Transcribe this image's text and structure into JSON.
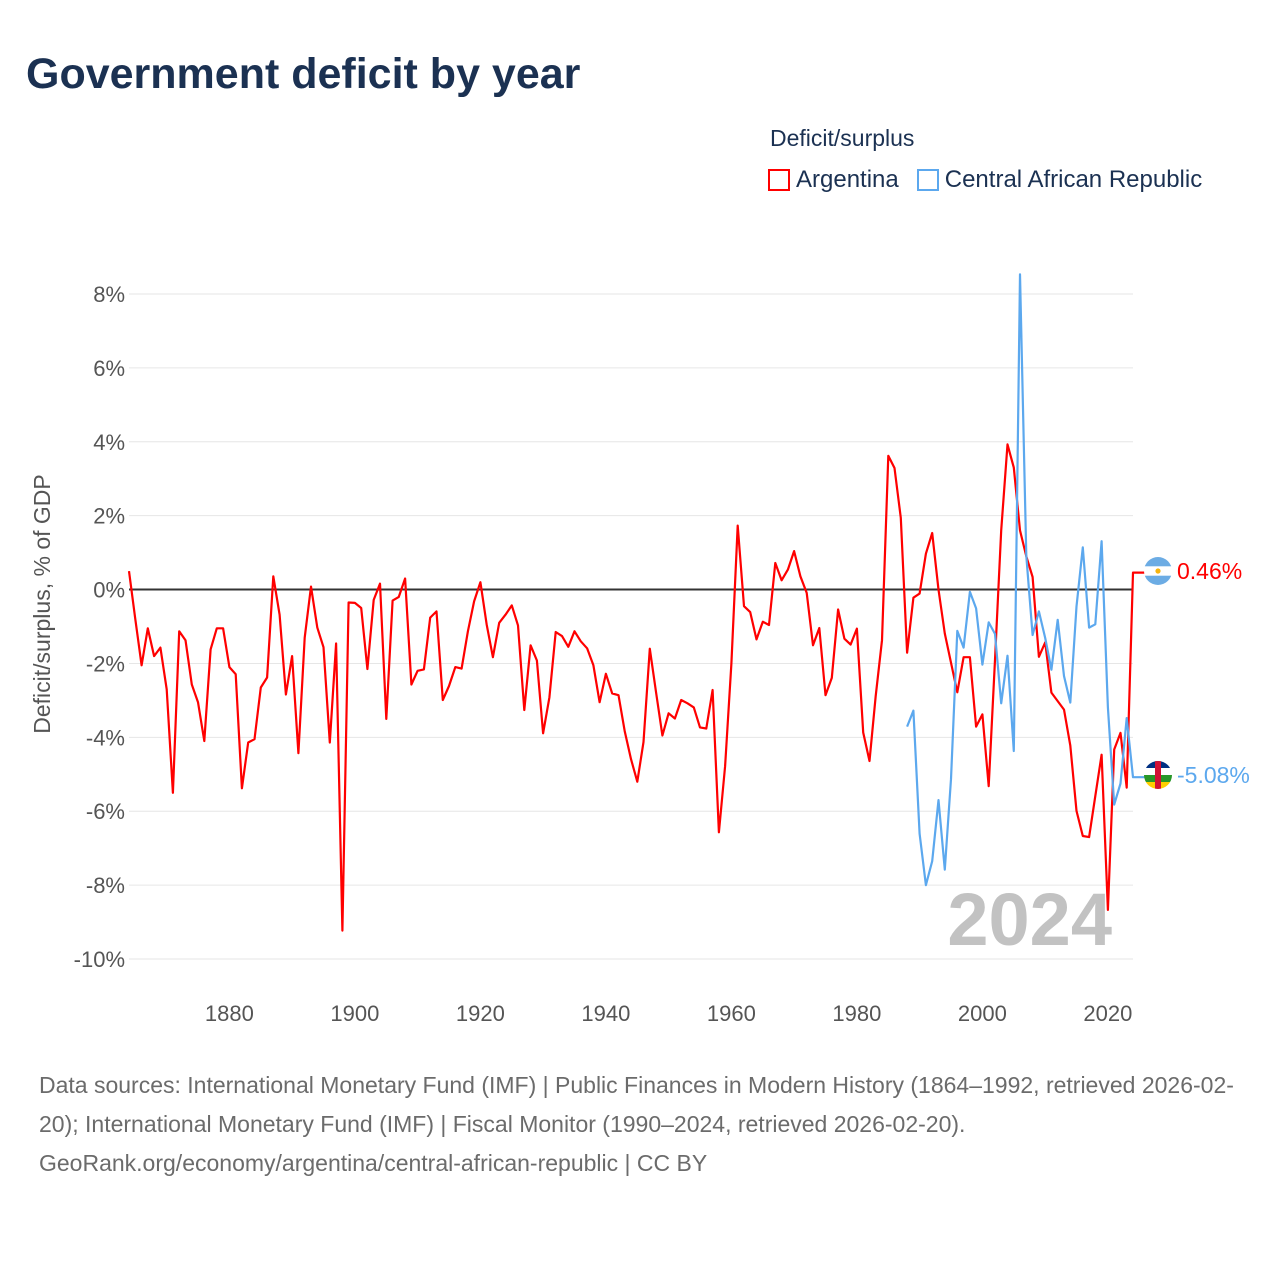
{
  "title": "Government deficit by year",
  "legend": {
    "title": "Deficit/surplus",
    "items": [
      {
        "label": "Argentina",
        "color": "#ff0000"
      },
      {
        "label": "Central African Republic",
        "color": "#5ca8ee"
      }
    ]
  },
  "footer": {
    "sources": "Data sources: International Monetary Fund (IMF) | Public Finances in Modern History (1864–1992, retrieved 2026-02-20); International Monetary Fund (IMF) | Fiscal Monitor (1990–2024, retrieved 2026-02-20).",
    "credit": "GeoRank.org/economy/argentina/central-african-republic | CC BY"
  },
  "chart_data": {
    "type": "line",
    "title": "Government deficit by year",
    "xlabel": "",
    "ylabel": "Deficit/surplus, % of GDP",
    "xlim": [
      1864,
      2024
    ],
    "ylim": [
      -10,
      8
    ],
    "x_ticks": [
      "1880",
      "1900",
      "1920",
      "1940",
      "1960",
      "1980",
      "2000",
      "2020"
    ],
    "y_ticks": [
      "8%",
      "6%",
      "4%",
      "2%",
      "0%",
      "-2%",
      "-4%",
      "-6%",
      "-8%",
      "-10%"
    ],
    "grid": true,
    "legend_position": "top-right",
    "year_watermark": "2024",
    "series": [
      {
        "name": "Argentina",
        "color": "#ff0000",
        "start_year": 1864,
        "end_label": "0.46%",
        "values": [
          0.5,
          -0.8,
          -2.05,
          -1.05,
          -1.8,
          -1.57,
          -2.7,
          -5.5,
          -1.13,
          -1.37,
          -2.57,
          -3.05,
          -4.1,
          -1.62,
          -1.05,
          -1.05,
          -2.1,
          -2.29,
          -5.38,
          -4.14,
          -4.05,
          -2.65,
          -2.38,
          0.36,
          -0.68,
          -2.84,
          -1.8,
          -4.43,
          -1.3,
          0.08,
          -1.03,
          -1.56,
          -4.14,
          -1.46,
          -9.23,
          -0.35,
          -0.36,
          -0.5,
          -2.15,
          -0.28,
          0.16,
          -3.5,
          -0.3,
          -0.2,
          0.3,
          -2.57,
          -2.2,
          -2.16,
          -0.76,
          -0.59,
          -2.99,
          -2.61,
          -2.1,
          -2.14,
          -1.13,
          -0.32,
          0.2,
          -0.95,
          -1.83,
          -0.9,
          -0.68,
          -0.43,
          -0.97,
          -3.26,
          -1.51,
          -1.92,
          -3.89,
          -2.92,
          -1.15,
          -1.26,
          -1.55,
          -1.13,
          -1.4,
          -1.59,
          -2.05,
          -3.05,
          -2.28,
          -2.81,
          -2.86,
          -3.83,
          -4.59,
          -5.2,
          -4.13,
          -1.6,
          -2.79,
          -3.95,
          -3.35,
          -3.49,
          -2.99,
          -3.08,
          -3.19,
          -3.73,
          -3.76,
          -2.72,
          -6.57,
          -4.78,
          -2.0,
          1.73,
          -0.45,
          -0.61,
          -1.35,
          -0.87,
          -0.96,
          0.72,
          0.25,
          0.54,
          1.04,
          0.36,
          -0.09,
          -1.51,
          -1.04,
          -2.86,
          -2.39,
          -0.54,
          -1.33,
          -1.49,
          -1.06,
          -3.87,
          -4.64,
          -2.88,
          -1.37,
          3.62,
          3.29,
          1.94,
          -1.71,
          -0.22,
          -0.11,
          0.97,
          1.53,
          0.0,
          -1.19,
          -1.98,
          -2.78,
          -1.83,
          -1.83,
          -3.71,
          -3.38,
          -5.32,
          -1.9,
          1.6,
          3.93,
          3.3,
          1.6,
          0.9,
          0.34,
          -1.82,
          -1.43,
          -2.79,
          -3.02,
          -3.25,
          -4.22,
          -5.99,
          -6.67,
          -6.7,
          -5.59,
          -4.47,
          -8.67,
          -4.33,
          -3.88,
          -5.36,
          0.46
        ]
      },
      {
        "name": "Central African Republic",
        "color": "#5ca8ee",
        "start_year": 1988,
        "end_label": "-5.08%",
        "values": [
          -3.71,
          -3.28,
          -6.61,
          -8.0,
          -7.35,
          -5.7,
          -7.58,
          -5.13,
          -1.12,
          -1.57,
          -0.06,
          -0.51,
          -2.03,
          -0.89,
          -1.2,
          -3.08,
          -1.79,
          -4.37,
          8.53,
          0.91,
          -1.23,
          -0.59,
          -1.31,
          -2.17,
          -0.82,
          -2.34,
          -3.06,
          -0.46,
          1.14,
          -1.03,
          -0.94,
          1.31,
          -3.19,
          -5.82,
          -5.25,
          -3.48,
          -5.08
        ]
      }
    ]
  }
}
